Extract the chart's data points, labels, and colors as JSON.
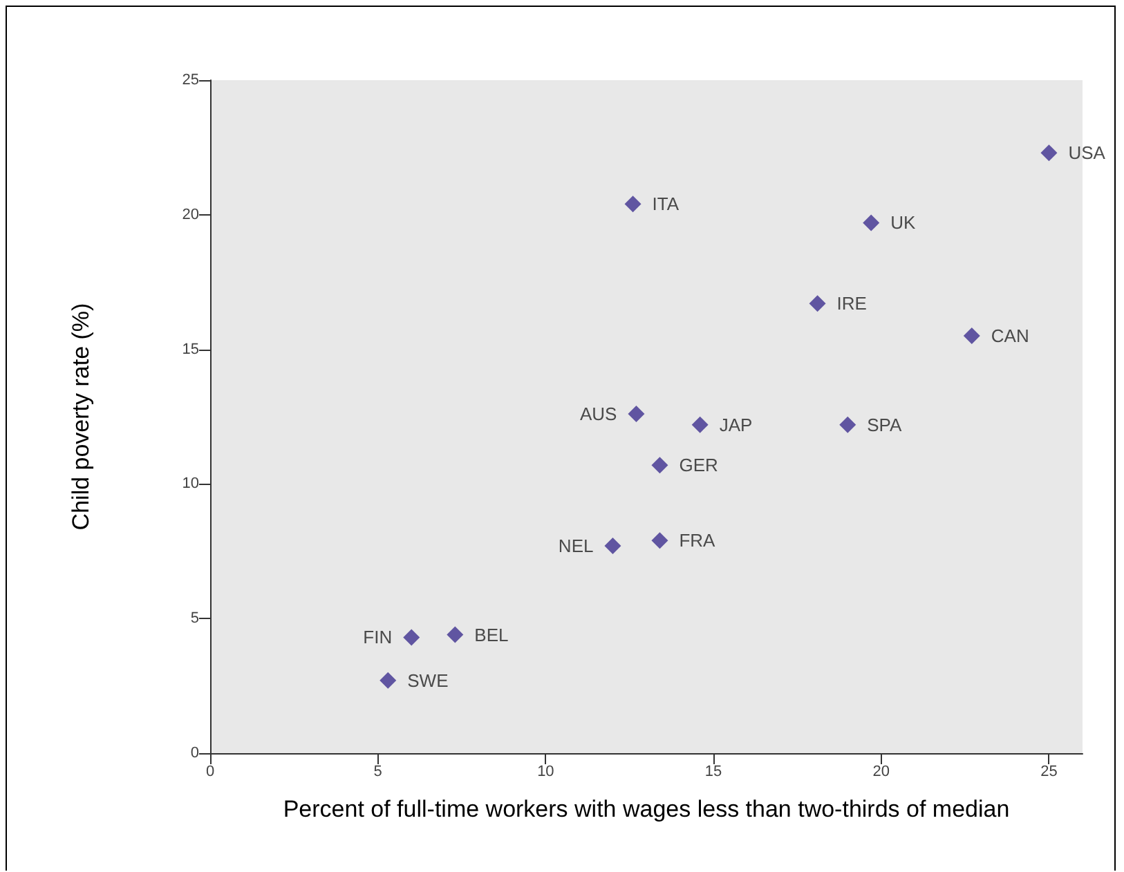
{
  "chart_data": {
    "type": "scatter",
    "xlabel": "Percent of full-time workers with wages less than two-thirds of median",
    "ylabel": "Child poverty rate (%)",
    "x": [
      25.0,
      12.6,
      19.7,
      18.1,
      22.7,
      12.7,
      14.6,
      19.0,
      13.4,
      12.0,
      13.4,
      6.0,
      7.3,
      5.3
    ],
    "series": [
      {
        "color": "#3d2f8f",
        "values": [
          22.3,
          20.4,
          19.7,
          16.7,
          15.5,
          12.6,
          12.2,
          12.2,
          10.7,
          7.7,
          7.9,
          4.3,
          4.4,
          2.7
        ]
      }
    ],
    "annotations": [
      {
        "text": "USA",
        "x": 25.0,
        "y": 22.3
      },
      {
        "text": "ITA",
        "x": 12.6,
        "y": 20.4
      },
      {
        "text": "UK",
        "x": 19.7,
        "y": 19.7
      },
      {
        "text": "IRE",
        "x": 18.1,
        "y": 16.7
      },
      {
        "text": "CAN",
        "x": 22.7,
        "y": 15.5
      },
      {
        "text": "AUS",
        "x": 12.7,
        "y": 12.6
      },
      {
        "text": "JAP",
        "x": 14.6,
        "y": 12.2
      },
      {
        "text": "SPA",
        "x": 19.0,
        "y": 12.2
      },
      {
        "text": "GER",
        "x": 13.4,
        "y": 10.7
      },
      {
        "text": "NEL",
        "x": 12.0,
        "y": 7.7
      },
      {
        "text": "FRA",
        "x": 13.4,
        "y": 7.9
      },
      {
        "text": "FIN",
        "x": 6.0,
        "y": 4.3
      },
      {
        "text": "BEL",
        "x": 7.3,
        "y": 4.4
      },
      {
        "text": "SWE",
        "x": 5.3,
        "y": 2.7
      }
    ],
    "xlim": [
      0,
      26
    ],
    "xticks": [
      0,
      5,
      10,
      15,
      20,
      25
    ],
    "ylim": [
      0,
      25
    ],
    "yticks": [
      0,
      5,
      10,
      15,
      20,
      25
    ],
    "grid": false,
    "marker": "diamond"
  }
}
